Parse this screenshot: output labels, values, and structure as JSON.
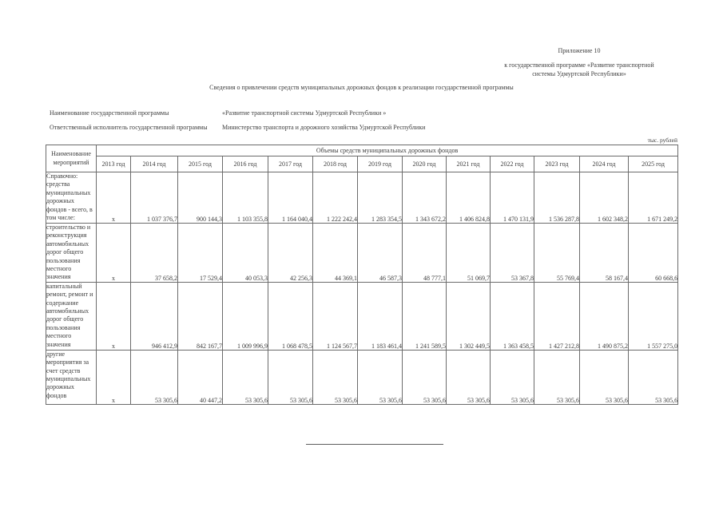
{
  "page": {
    "appendix_label": "Приложение  10",
    "appendix_subtitle_line1": "к государственной программе «Развитие транспортной",
    "appendix_subtitle_line2": "системы Удмуртской Республики»",
    "title": "Сведения о привлечении средств муниципальных дорожных фондов к реализации государственной программы",
    "program_name_label": "Наименование государственной программы",
    "program_name_value": "«Развитие транспортной системы Удмуртской Республики »",
    "executor_label": "Ответственный исполнитель государственной программы",
    "executor_value": "Министерство транспорта и дорожного хозяйства Удмуртской Республики",
    "units_note": "тыс. рублей"
  },
  "table": {
    "col1_header": "Наименование мероприятий",
    "group_header": "Объемы средств муниципальных дорожных фондов",
    "year_headers": [
      "2013 год",
      "2014 год",
      "2015 год",
      "2016 год",
      "2017 год",
      "2018 год",
      "2019 год",
      "2020 год",
      "2021 год",
      "2022 год",
      "2023 год",
      "2024 год",
      "2025 год"
    ],
    "rows": [
      {
        "label": "Справочно: средства муниципальных дорожных фондов - всего, в том числе:",
        "values": [
          "х",
          "1 037 376,7",
          "900 144,3",
          "1 103 355,8",
          "1 164 040,4",
          "1 222 242,4",
          "1 283 354,5",
          "1 343 672,2",
          "1 406 824,8",
          "1 470 131,9",
          "1 536 287,8",
          "1 602 348,2",
          "1 671 249,2"
        ]
      },
      {
        "label": "строительство и реконструкция автомобильных дорог общего пользования местного значения",
        "values": [
          "х",
          "37 658,2",
          "17 529,4",
          "40 053,3",
          "42 256,3",
          "44 369,1",
          "46 587,3",
          "48 777,1",
          "51 069,7",
          "53 367,8",
          "55 769,4",
          "58 167,4",
          "60 668,6"
        ]
      },
      {
        "label": "капитальный ремонт, ремонт и содержание автомобильных дорог общего пользования местного значения",
        "values": [
          "х",
          "946 412,9",
          "842 167,7",
          "1 009 996,9",
          "1 068 478,5",
          "1 124 567,7",
          "1 183 461,4",
          "1 241 589,5",
          "1 302 449,5",
          "1 363 458,5",
          "1 427 212,8",
          "1 490 875,2",
          "1 557 275,0"
        ]
      },
      {
        "label": "другие мероприятия за счет средств муниципальных дорожных фондов",
        "values": [
          "х",
          "53 305,6",
          "40 447,2",
          "53 305,6",
          "53 305,6",
          "53 305,6",
          "53 305,6",
          "53 305,6",
          "53 305,6",
          "53 305,6",
          "53 305,6",
          "53 305,6",
          "53 305,6"
        ]
      }
    ]
  }
}
